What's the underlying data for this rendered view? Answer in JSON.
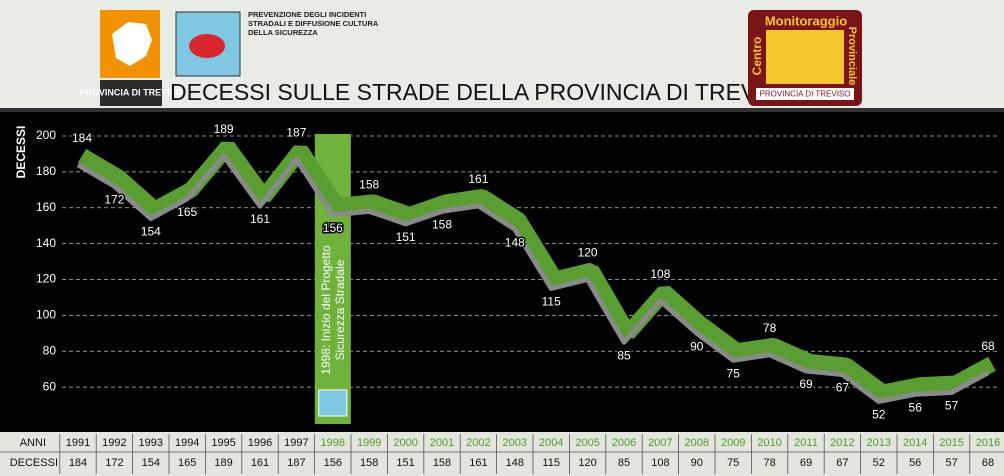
{
  "header": {
    "logo_text": "PROVINCIA DI TREVISO",
    "subtitle": [
      "PREVENZIONE DEGLI INCIDENTI",
      "STRADALI E DIFFUSIONE CULTURA",
      "DELLA SICUREZZA"
    ],
    "right_logo": {
      "line1": "Centro",
      "line2": "Monitoraggio",
      "line3": "Provinciale",
      "footer": "PROVINCIA DI TREVISO"
    }
  },
  "chart_data": {
    "type": "line",
    "title": "DECESSI SULLE STRADE DELLA PROVINCIA DI TREVISO",
    "x_label": "ANNI",
    "y_label": "DECESSI",
    "categories": [
      "1991",
      "1992",
      "1993",
      "1994",
      "1995",
      "1996",
      "1997",
      "1998",
      "1999",
      "2000",
      "2001",
      "2002",
      "2003",
      "2004",
      "2005",
      "2006",
      "2007",
      "2008",
      "2009",
      "2010",
      "2011",
      "2012",
      "2013",
      "2014",
      "2015",
      "2016"
    ],
    "values": [
      184,
      172,
      154,
      165,
      189,
      161,
      187,
      156,
      158,
      151,
      158,
      161,
      148,
      115,
      120,
      85,
      108,
      90,
      75,
      78,
      69,
      67,
      52,
      56,
      57,
      68
    ],
    "color": "#5a9e32",
    "line_color": "#8a8a8a",
    "ylim": [
      40,
      200
    ],
    "yticks": [
      60,
      80,
      100,
      120,
      140,
      160,
      180,
      200
    ],
    "grid": true,
    "annotation": {
      "category": "1998",
      "text": [
        "1998: Inizio del Progetto",
        "Sicurezza Stradale"
      ]
    }
  }
}
